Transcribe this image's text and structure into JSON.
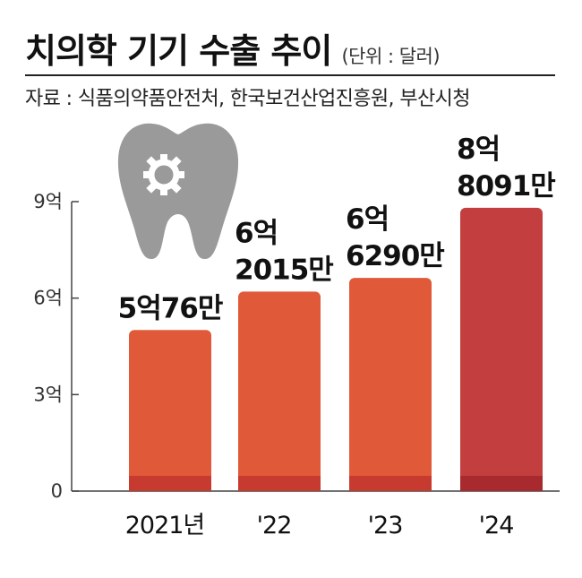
{
  "title": "치의학 기기 수출 추이",
  "unit": "(단위 : 달러)",
  "source": "자료 : 식품의약품안전처, 한국보건산업진흥원, 부산시청",
  "icon": "tooth-gear-icon",
  "colors": {
    "bar": "#e05a3a",
    "bar_highlight": "#c33f3f",
    "bar_base": "#c63a30",
    "bar_base_highlight": "#a82a2e",
    "icon": "#9a9a9a",
    "axis": "#444444"
  },
  "chart_data": {
    "type": "bar",
    "categories": [
      "2021년",
      "'22",
      "'23",
      "'24"
    ],
    "values": [
      500760000,
      620150000,
      662900000,
      880910000
    ],
    "data_labels": [
      [
        "5억76만"
      ],
      [
        "6억",
        "2015만"
      ],
      [
        "6억",
        "6290만"
      ],
      [
        "8억",
        "8091만"
      ]
    ],
    "yticks": [
      {
        "value": 0,
        "label": "0"
      },
      {
        "value": 300000000,
        "label": "3억"
      },
      {
        "value": 600000000,
        "label": "6억"
      },
      {
        "value": 900000000,
        "label": "9억"
      }
    ],
    "ylim": [
      0,
      900000000
    ],
    "highlight_index": 3,
    "grid": false
  }
}
